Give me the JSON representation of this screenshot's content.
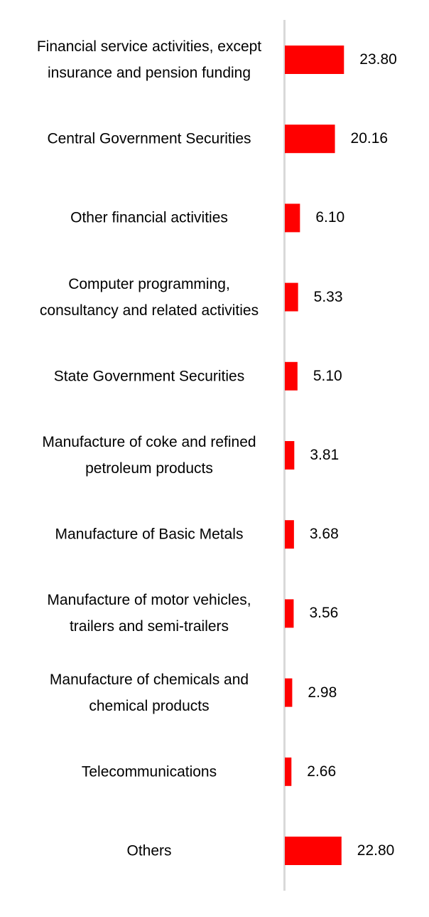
{
  "chart_data": {
    "type": "bar",
    "orientation": "horizontal",
    "categories": [
      "Financial service activities, except insurance and pension funding",
      "Central Government Securities",
      "Other financial activities",
      "Computer programming, consultancy and related activities",
      "State Government Securities",
      "Manufacture of coke and refined petroleum products",
      "Manufacture of Basic Metals",
      "Manufacture of motor vehicles, trailers and semi-trailers",
      "Manufacture of chemicals and chemical products",
      "Telecommunications",
      "Others"
    ],
    "values": [
      23.8,
      20.16,
      6.1,
      5.33,
      5.1,
      3.81,
      3.68,
      3.56,
      2.98,
      2.66,
      22.8
    ],
    "value_labels": [
      "23.80",
      "20.16",
      "6.10",
      "5.33",
      "5.10",
      "3.81",
      "3.68",
      "3.56",
      "2.98",
      "2.66",
      "22.80"
    ],
    "bar_color": "#ff0000",
    "axis_color": "#d9d9d9",
    "title": "",
    "xlabel": "",
    "ylabel": "",
    "grid": false,
    "legend": "none"
  }
}
